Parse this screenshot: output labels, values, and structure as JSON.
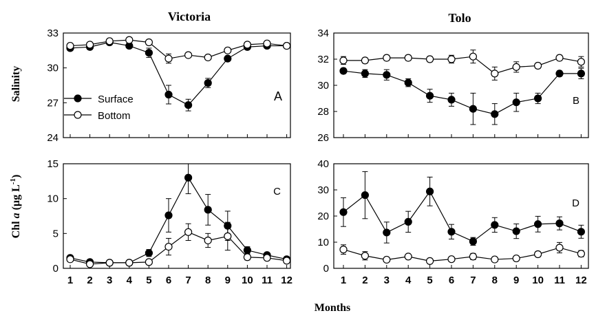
{
  "figure": {
    "col_titles": [
      "Victoria",
      "Tolo"
    ],
    "x_label": "Months",
    "y_label_top": "Salinity",
    "y_label_bottom_prefix": "Chl ",
    "y_label_bottom_italic": "a",
    "y_label_bottom_suffix": " (µg L",
    "y_label_bottom_sup": "-1",
    "y_label_bottom_close": ")",
    "legend": [
      "Surface",
      "Bottom"
    ]
  },
  "chart_data": [
    {
      "type": "line",
      "panel_letter": "A",
      "x": [
        1,
        2,
        3,
        4,
        5,
        6,
        7,
        8,
        9,
        10,
        11,
        12
      ],
      "ylim": [
        24,
        33
      ],
      "yticks": [
        24,
        27,
        30,
        33
      ],
      "series": [
        {
          "name": "Surface",
          "marker": "filled",
          "values": [
            31.7,
            31.8,
            32.2,
            31.9,
            31.3,
            27.7,
            26.8,
            28.7,
            30.8,
            31.8,
            31.9,
            31.9
          ],
          "errors": [
            0.2,
            0.2,
            0.2,
            0.2,
            0.4,
            0.8,
            0.5,
            0.4,
            0.2,
            0.2,
            0.2,
            0.2
          ]
        },
        {
          "name": "Bottom",
          "marker": "open",
          "values": [
            31.9,
            32.0,
            32.3,
            32.4,
            32.2,
            30.8,
            31.1,
            30.9,
            31.5,
            32.0,
            32.1,
            31.9
          ],
          "errors": [
            0.2,
            0.2,
            0.2,
            0.2,
            0.2,
            0.4,
            0.2,
            0.2,
            0.2,
            0.2,
            0.2,
            0.2
          ]
        }
      ]
    },
    {
      "type": "line",
      "panel_letter": "B",
      "x": [
        1,
        2,
        3,
        4,
        5,
        6,
        7,
        8,
        9,
        10,
        11,
        12
      ],
      "ylim": [
        26,
        34
      ],
      "yticks": [
        26,
        28,
        30,
        32,
        34
      ],
      "series": [
        {
          "name": "Surface",
          "marker": "filled",
          "values": [
            31.1,
            30.9,
            30.8,
            30.2,
            29.2,
            28.9,
            28.2,
            27.8,
            28.7,
            29.0,
            30.9,
            30.9
          ],
          "errors": [
            0.2,
            0.3,
            0.4,
            0.3,
            0.5,
            0.5,
            1.2,
            0.8,
            0.7,
            0.4,
            0.2,
            0.4
          ]
        },
        {
          "name": "Bottom",
          "marker": "open",
          "values": [
            31.9,
            31.9,
            32.1,
            32.1,
            32.0,
            32.0,
            32.2,
            30.9,
            31.4,
            31.5,
            32.1,
            31.8
          ],
          "errors": [
            0.3,
            0.2,
            0.2,
            0.2,
            0.2,
            0.3,
            0.5,
            0.5,
            0.4,
            0.2,
            0.2,
            0.4
          ]
        }
      ]
    },
    {
      "type": "line",
      "panel_letter": "C",
      "x": [
        1,
        2,
        3,
        4,
        5,
        6,
        7,
        8,
        9,
        10,
        11,
        12
      ],
      "ylim": [
        0,
        15
      ],
      "yticks": [
        0,
        5,
        10,
        15
      ],
      "series": [
        {
          "name": "Surface",
          "marker": "filled",
          "values": [
            1.5,
            0.9,
            0.8,
            0.8,
            2.2,
            7.6,
            13.0,
            8.4,
            6.1,
            2.6,
            1.9,
            1.3
          ],
          "errors": [
            0.3,
            0.3,
            0.2,
            0.2,
            0.5,
            2.4,
            2.3,
            2.2,
            2.1,
            0.5,
            0.3,
            0.3
          ]
        },
        {
          "name": "Bottom",
          "marker": "open",
          "values": [
            1.3,
            0.6,
            0.8,
            0.8,
            0.9,
            3.1,
            5.2,
            4.0,
            4.6,
            1.6,
            1.5,
            1.1
          ],
          "errors": [
            0.3,
            0.3,
            0.2,
            0.2,
            0.3,
            1.2,
            1.2,
            1.0,
            2.0,
            0.4,
            0.3,
            0.3
          ]
        }
      ]
    },
    {
      "type": "line",
      "panel_letter": "D",
      "x": [
        1,
        2,
        3,
        4,
        5,
        6,
        7,
        8,
        9,
        10,
        11,
        12
      ],
      "ylim": [
        0,
        40
      ],
      "yticks": [
        0,
        10,
        20,
        30,
        40
      ],
      "series": [
        {
          "name": "Surface",
          "marker": "filled",
          "values": [
            21.5,
            28.0,
            13.7,
            17.8,
            29.4,
            14.0,
            10.3,
            16.6,
            14.2,
            16.9,
            17.2,
            14.0
          ],
          "errors": [
            5.5,
            9.0,
            4.0,
            4.0,
            5.5,
            2.8,
            1.5,
            2.8,
            2.8,
            3.0,
            2.5,
            2.5
          ]
        },
        {
          "name": "Bottom",
          "marker": "open",
          "values": [
            7.2,
            4.8,
            3.3,
            4.5,
            2.8,
            3.5,
            4.5,
            3.4,
            3.8,
            5.4,
            7.9,
            5.6
          ],
          "errors": [
            1.8,
            1.6,
            0.8,
            0.8,
            0.8,
            0.8,
            1.2,
            0.8,
            0.8,
            1.0,
            2.0,
            1.2
          ]
        }
      ]
    }
  ]
}
